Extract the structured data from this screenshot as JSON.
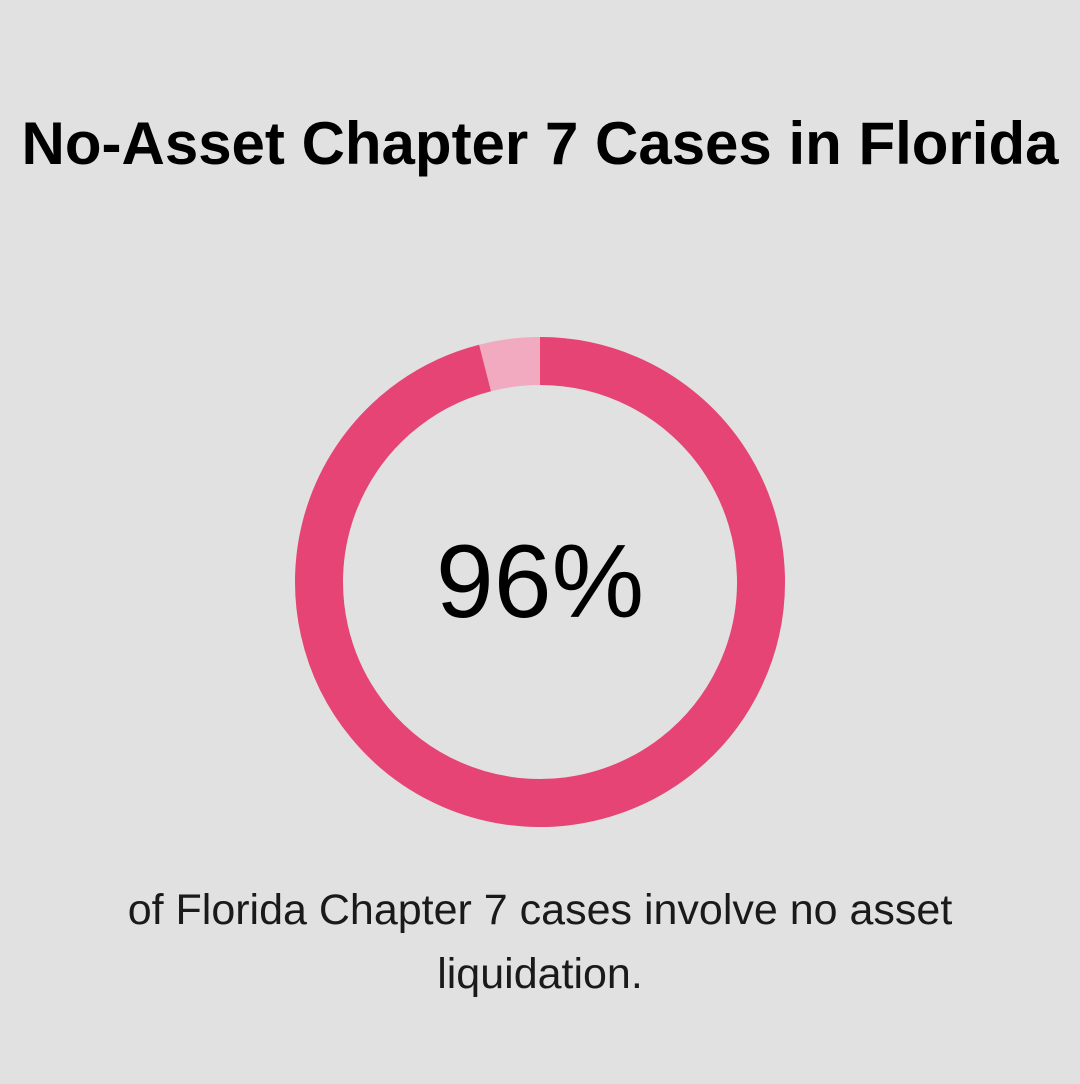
{
  "chart_data": {
    "type": "donut",
    "title": "No-Asset Chapter 7 Cases in Florida",
    "values": [
      96,
      4
    ],
    "value_labels": [
      "96%",
      null
    ],
    "colors": [
      "#e54474",
      "#f2aac1"
    ],
    "caption": "of Florida Chapter 7 cases involve no asset liquidation."
  }
}
